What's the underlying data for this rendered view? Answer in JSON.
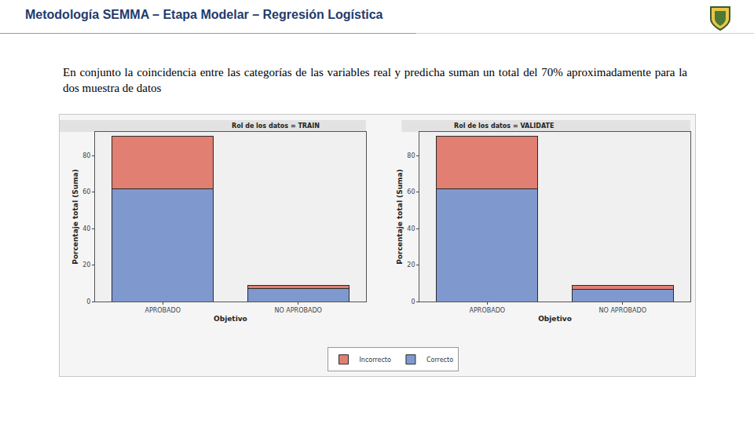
{
  "slide": {
    "title": "Metodología SEMMA – Etapa Modelar – Regresión Logística",
    "text": "En conjunto la coincidencia entre las categorías de las variables real y predicha suman un total del 70% aproximadamente para la dos muestra de datos"
  },
  "chart_data": [
    {
      "type": "bar",
      "title": "Rol de los datos = TRAIN",
      "x_label": "Objetivo",
      "y_label": "Porcentaje total (Suma)",
      "categories": [
        "APROBADO",
        "NO APROBADO"
      ],
      "series": [
        {
          "name": "Correcto",
          "color": "#7f99cf",
          "values": [
            62,
            7
          ]
        },
        {
          "name": "Incorrecto",
          "color": "#e07f72",
          "values": [
            28.5,
            2
          ]
        }
      ],
      "stacked": true,
      "ylim": [
        0,
        93
      ],
      "yticks": [
        0,
        20,
        40,
        60,
        80
      ],
      "grid": false,
      "legend": "bottom"
    },
    {
      "type": "bar",
      "title": "Rol de los datos = VALIDATE",
      "x_label": "Objetivo",
      "y_label": "Porcentaje total (Suma)",
      "categories": [
        "APROBADO",
        "NO APROBADO"
      ],
      "series": [
        {
          "name": "Correcto",
          "color": "#7f99cf",
          "values": [
            62,
            6.5
          ]
        },
        {
          "name": "Incorrecto",
          "color": "#e07f72",
          "values": [
            28.5,
            2.5
          ]
        }
      ],
      "stacked": true,
      "ylim": [
        0,
        93
      ],
      "yticks": [
        0,
        20,
        40,
        60,
        80
      ],
      "grid": false,
      "legend": "bottom"
    }
  ]
}
